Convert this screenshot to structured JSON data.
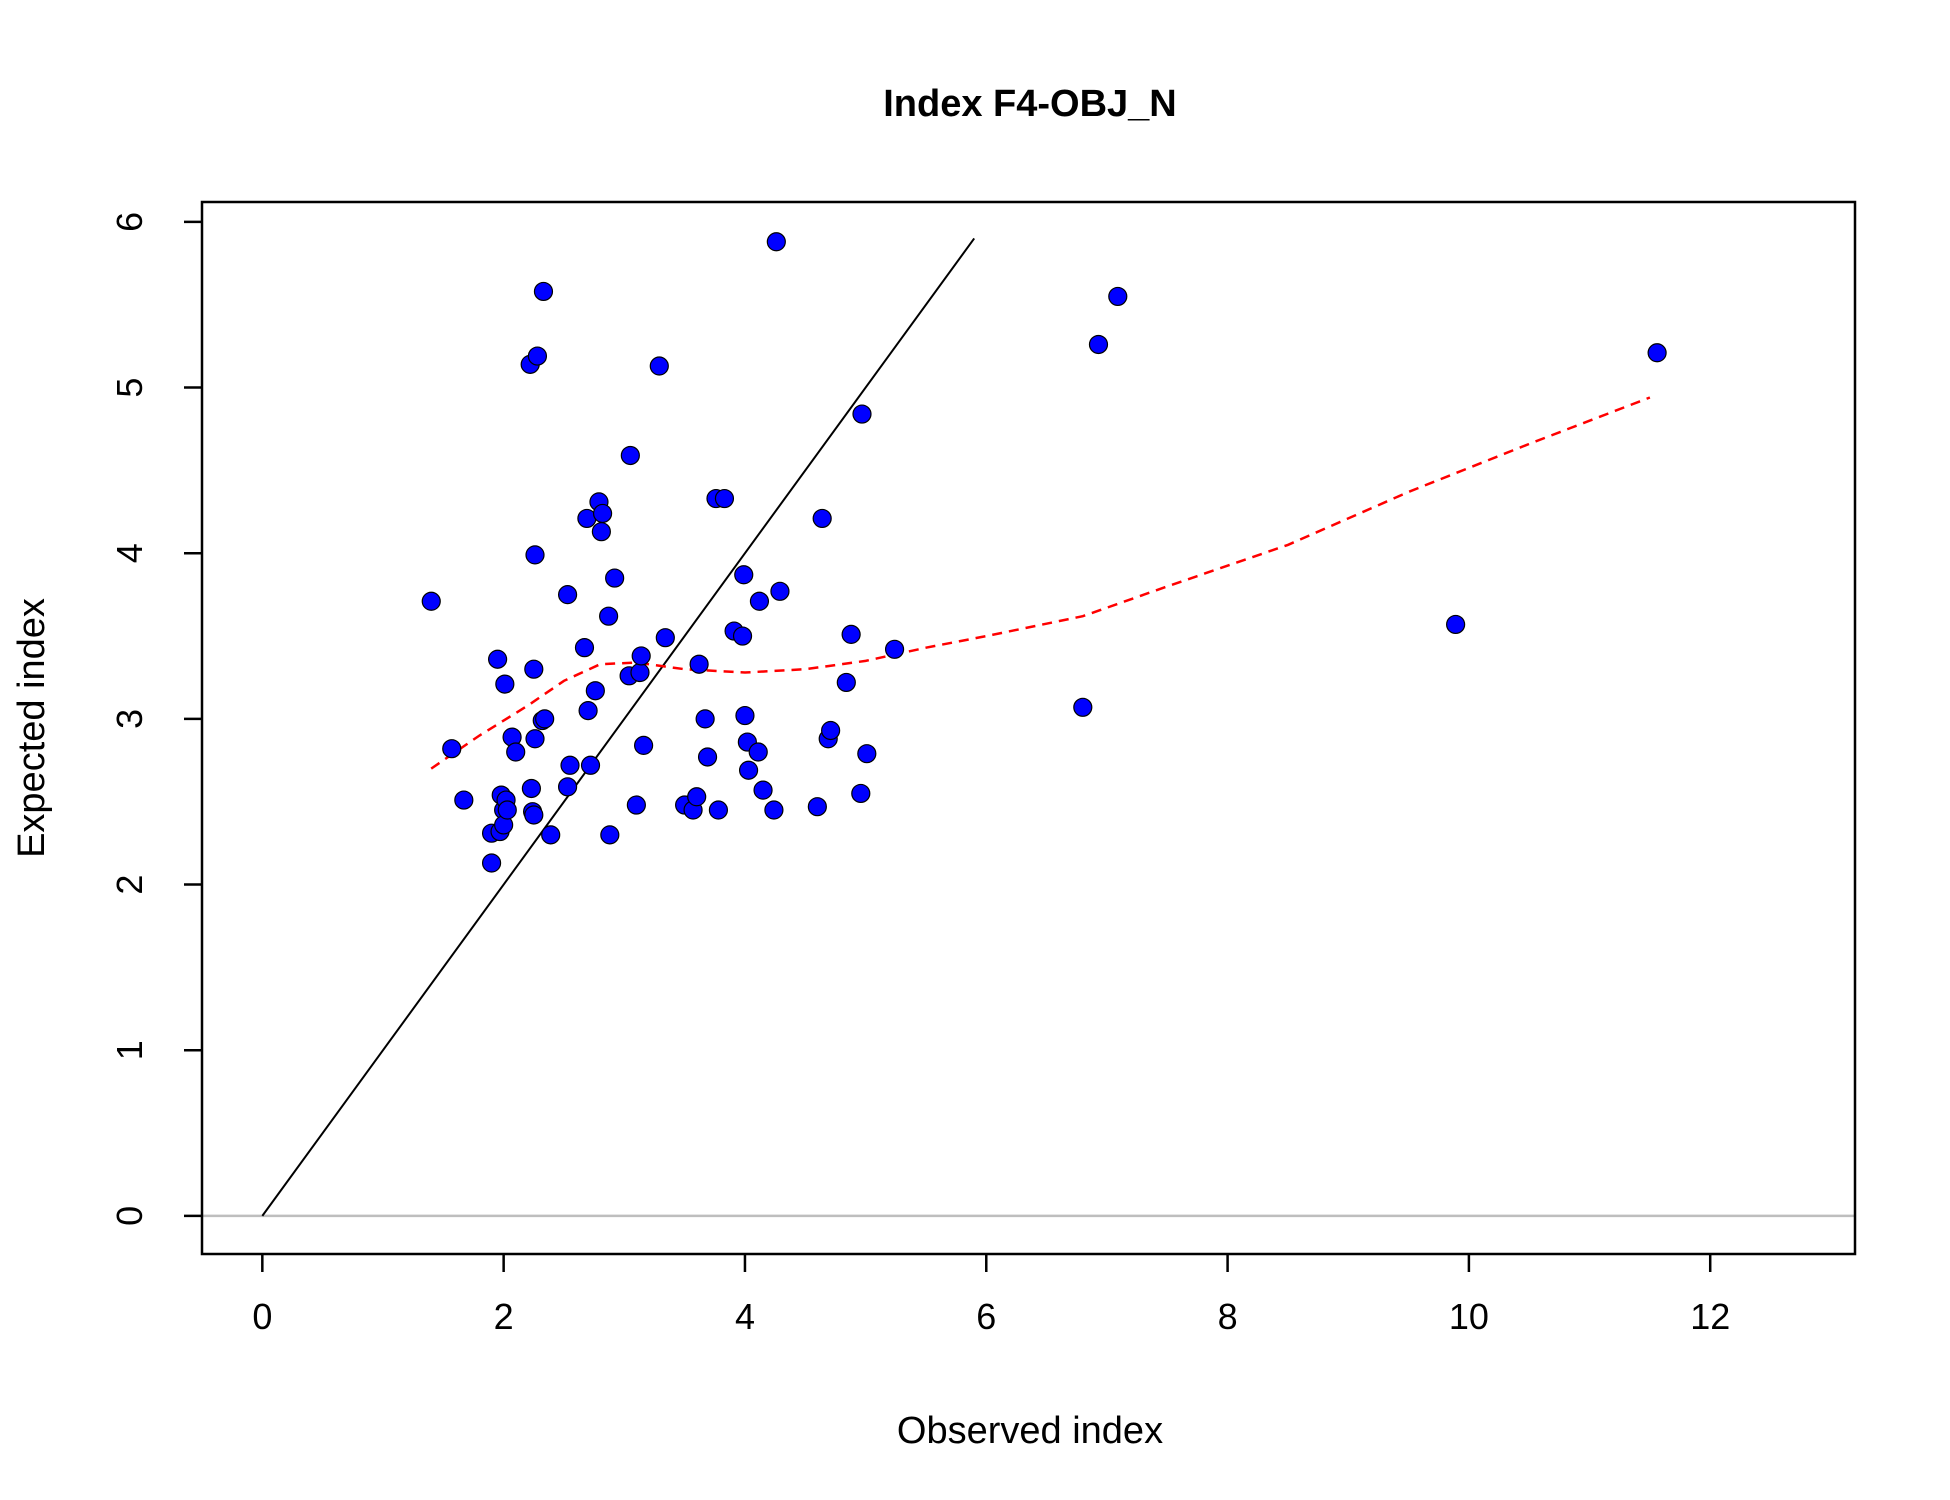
{
  "chart_data": {
    "type": "scatter",
    "title": "Index F4-OBJ_N",
    "xlabel": "Observed index",
    "ylabel": "Expected index",
    "xlim": [
      -0.5,
      13.2
    ],
    "ylim": [
      -0.23,
      6.12
    ],
    "x_ticks": [
      0,
      2,
      4,
      6,
      8,
      10,
      12
    ],
    "y_ticks": [
      0,
      1,
      2,
      3,
      4,
      5,
      6
    ],
    "grid": false,
    "legend": "none",
    "colors": {
      "points": "#0000ff",
      "point_outline": "#000000",
      "identity_line": "#000000",
      "smooth_line": "#ff0000",
      "zero_line": "#bebebe"
    },
    "identity_line": {
      "x": [
        0,
        5.9
      ],
      "y": [
        0,
        5.9
      ]
    },
    "zero_line": {
      "y": 0
    },
    "smooth": {
      "style": "dashed",
      "x": [
        1.4,
        1.8,
        2.2,
        2.5,
        2.8,
        3.1,
        3.5,
        4.0,
        4.5,
        5.0,
        5.5,
        6.0,
        6.8,
        7.5,
        8.5,
        9.5,
        10.5,
        11.5
      ],
      "y": [
        2.7,
        2.9,
        3.08,
        3.23,
        3.33,
        3.34,
        3.3,
        3.28,
        3.3,
        3.35,
        3.43,
        3.5,
        3.62,
        3.8,
        4.05,
        4.37,
        4.66,
        4.94
      ]
    },
    "points": {
      "x": [
        1.4,
        1.57,
        1.67,
        1.9,
        1.9,
        1.95,
        1.97,
        1.98,
        2.0,
        2.0,
        2.01,
        2.02,
        2.03,
        2.07,
        2.1,
        2.22,
        2.23,
        2.24,
        2.25,
        2.25,
        2.26,
        2.26,
        2.28,
        2.32,
        2.33,
        2.34,
        2.39,
        2.53,
        2.53,
        2.55,
        2.67,
        2.69,
        2.7,
        2.72,
        2.76,
        2.79,
        2.81,
        2.82,
        2.87,
        2.88,
        2.92,
        3.04,
        3.05,
        3.1,
        3.13,
        3.14,
        3.16,
        3.29,
        3.34,
        3.5,
        3.57,
        3.6,
        3.62,
        3.67,
        3.69,
        3.76,
        3.78,
        3.83,
        3.91,
        3.98,
        3.99,
        4.0,
        4.02,
        4.03,
        4.11,
        4.12,
        4.15,
        4.24,
        4.26,
        4.29,
        4.6,
        4.64,
        4.69,
        4.71,
        4.84,
        4.88,
        4.96,
        4.97,
        5.01,
        5.24,
        6.8,
        6.93,
        7.09,
        9.89,
        11.56
      ],
      "y": [
        3.71,
        2.82,
        2.51,
        2.13,
        2.31,
        3.36,
        2.32,
        2.54,
        2.45,
        2.36,
        3.21,
        2.51,
        2.45,
        2.89,
        2.8,
        5.14,
        2.58,
        2.44,
        2.42,
        3.3,
        3.99,
        2.88,
        5.19,
        2.99,
        5.58,
        3.0,
        2.3,
        3.75,
        2.59,
        2.72,
        3.43,
        4.21,
        3.05,
        2.72,
        3.17,
        4.31,
        4.13,
        4.24,
        3.62,
        2.3,
        3.85,
        3.26,
        4.59,
        2.48,
        3.28,
        3.38,
        2.84,
        5.13,
        3.49,
        2.48,
        2.45,
        2.53,
        3.33,
        3.0,
        2.77,
        4.33,
        2.45,
        4.33,
        3.53,
        3.5,
        3.87,
        3.02,
        2.86,
        2.69,
        2.8,
        3.71,
        2.57,
        2.45,
        5.88,
        3.77,
        2.47,
        4.21,
        2.88,
        2.93,
        3.22,
        3.51,
        2.55,
        4.84,
        2.79,
        3.42,
        3.07,
        5.26,
        5.55,
        3.57,
        5.21
      ]
    }
  }
}
